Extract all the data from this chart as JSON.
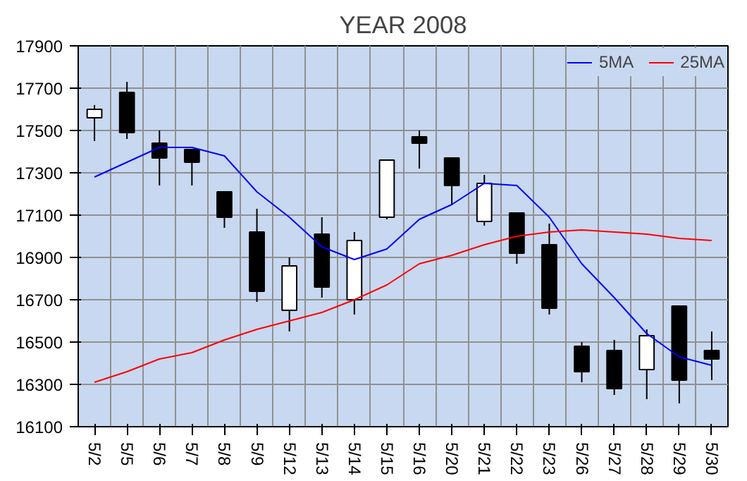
{
  "chart_data": {
    "type": "candlestick",
    "title": "YEAR 2008",
    "categories": [
      "5/2",
      "5/5",
      "5/6",
      "5/7",
      "5/8",
      "5/9",
      "5/12",
      "5/13",
      "5/14",
      "5/15",
      "5/16",
      "5/20",
      "5/21",
      "5/22",
      "5/23",
      "5/26",
      "5/27",
      "5/28",
      "5/29",
      "5/30"
    ],
    "ohlc": [
      [
        17560,
        17620,
        17450,
        17600
      ],
      [
        17680,
        17730,
        17460,
        17490
      ],
      [
        17440,
        17500,
        17240,
        17370
      ],
      [
        17410,
        17410,
        17240,
        17350
      ],
      [
        17210,
        17210,
        17040,
        17090
      ],
      [
        17020,
        17130,
        16690,
        16740
      ],
      [
        16650,
        16900,
        16550,
        16860
      ],
      [
        17010,
        17090,
        16710,
        16760
      ],
      [
        16700,
        17020,
        16630,
        16980
      ],
      [
        17090,
        17360,
        17080,
        17360
      ],
      [
        17470,
        17500,
        17320,
        17440
      ],
      [
        17370,
        17370,
        17150,
        17240
      ],
      [
        17070,
        17290,
        17050,
        17250
      ],
      [
        17110,
        17110,
        16870,
        16920
      ],
      [
        16960,
        17060,
        16630,
        16660
      ],
      [
        16480,
        16500,
        16310,
        16360
      ],
      [
        16460,
        16510,
        16250,
        16280
      ],
      [
        16370,
        16560,
        16230,
        16530
      ],
      [
        16670,
        16670,
        16210,
        16320
      ],
      [
        16460,
        16550,
        16320,
        16420
      ]
    ],
    "series": [
      {
        "name": "5MA",
        "type": "line",
        "color": "#0000ff",
        "values": [
          17280,
          17350,
          17420,
          17420,
          17380,
          17210,
          17090,
          16950,
          16890,
          16940,
          17080,
          17150,
          17250,
          17240,
          17090,
          16870,
          16710,
          16540,
          16430,
          16390
        ]
      },
      {
        "name": "25MA",
        "type": "line",
        "color": "#ff0000",
        "values": [
          16310,
          16360,
          16420,
          16450,
          16510,
          16560,
          16600,
          16640,
          16700,
          16770,
          16870,
          16910,
          16960,
          17000,
          17020,
          17030,
          17020,
          17010,
          16990,
          16980
        ]
      }
    ],
    "ylim": [
      16100,
      17900
    ],
    "yticks": [
      16100,
      16300,
      16500,
      16700,
      16900,
      17100,
      17300,
      17500,
      17700,
      17900
    ],
    "grid": true,
    "legend": "top right"
  }
}
